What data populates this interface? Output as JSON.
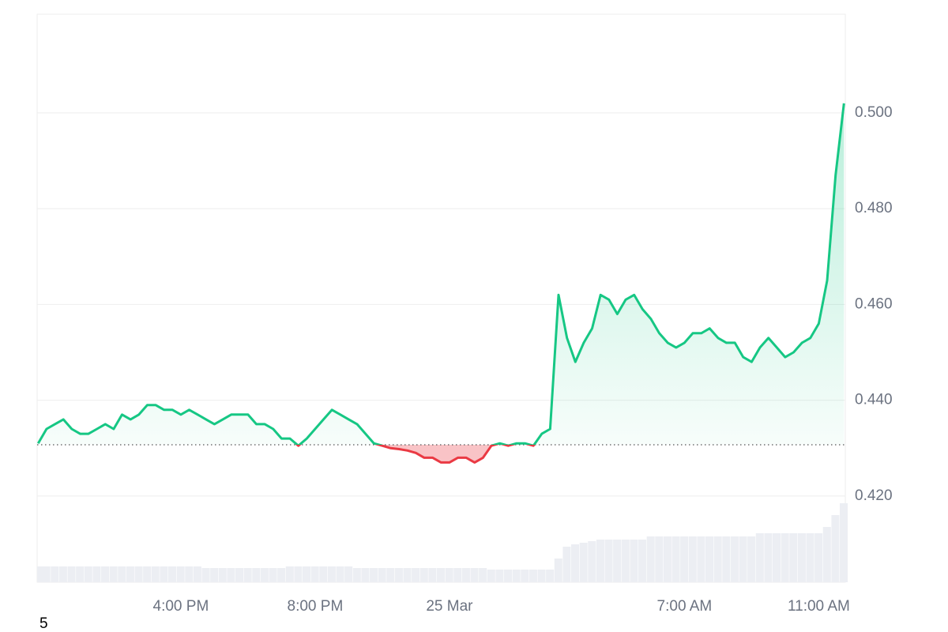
{
  "chart_data": {
    "type": "line",
    "x": [
      -12.25,
      -12,
      -11.75,
      -11.5,
      -11.25,
      -11,
      -10.75,
      -10.5,
      -10.25,
      -10,
      -9.75,
      -9.5,
      -9.25,
      -9,
      -8.75,
      -8.5,
      -8.25,
      -8,
      -7.75,
      -7.5,
      -7.25,
      -7,
      -6.75,
      -6.5,
      -6.25,
      -6,
      -5.75,
      -5.5,
      -5.25,
      -5,
      -4.75,
      -4.5,
      -4.25,
      -4,
      -3.75,
      -3.5,
      -3.25,
      -3,
      -2.75,
      -2.5,
      -2.25,
      -2,
      -1.75,
      -1.5,
      -1.25,
      -1,
      -0.75,
      -0.5,
      -0.25,
      0,
      0.25,
      0.5,
      0.75,
      1,
      1.25,
      1.5,
      1.75,
      2,
      2.25,
      2.5,
      2.75,
      3,
      3.25,
      3.5,
      3.75,
      4,
      4.25,
      4.5,
      4.75,
      5,
      5.25,
      5.5,
      5.75,
      6,
      6.25,
      6.5,
      6.75,
      7,
      7.25,
      7.5,
      7.75,
      8,
      8.25,
      8.5,
      8.75,
      9,
      9.25,
      9.5,
      9.75,
      10,
      10.25,
      10.5,
      10.75,
      11,
      11.25,
      11.5,
      11.75
    ],
    "values": [
      0.431,
      0.434,
      0.435,
      0.436,
      0.434,
      0.433,
      0.433,
      0.434,
      0.435,
      0.434,
      0.437,
      0.436,
      0.437,
      0.439,
      0.439,
      0.438,
      0.438,
      0.437,
      0.438,
      0.437,
      0.436,
      0.435,
      0.436,
      0.437,
      0.437,
      0.437,
      0.435,
      0.435,
      0.434,
      0.432,
      0.432,
      0.4305,
      0.432,
      0.434,
      0.436,
      0.438,
      0.437,
      0.436,
      0.435,
      0.433,
      0.431,
      0.4305,
      0.43,
      0.4298,
      0.4295,
      0.429,
      0.428,
      0.428,
      0.427,
      0.427,
      0.428,
      0.428,
      0.427,
      0.428,
      0.4305,
      0.431,
      0.4305,
      0.431,
      0.431,
      0.4305,
      0.433,
      0.434,
      0.462,
      0.453,
      0.448,
      0.452,
      0.455,
      0.462,
      0.461,
      0.458,
      0.461,
      0.462,
      0.459,
      0.457,
      0.454,
      0.452,
      0.451,
      0.452,
      0.454,
      0.454,
      0.455,
      0.453,
      0.452,
      0.452,
      0.449,
      0.448,
      0.451,
      0.453,
      0.451,
      0.449,
      0.45,
      0.452,
      0.453,
      0.456,
      0.465,
      0.487,
      0.502
    ],
    "volume": [
      20,
      20,
      20,
      20,
      20,
      20,
      20,
      20,
      20,
      20,
      20,
      20,
      20,
      20,
      20,
      20,
      20,
      20,
      20,
      20,
      18,
      18,
      18,
      18,
      18,
      18,
      18,
      18,
      18,
      18,
      20,
      20,
      20,
      20,
      20,
      20,
      20,
      20,
      18,
      18,
      18,
      18,
      18,
      18,
      18,
      18,
      18,
      18,
      18,
      18,
      18,
      18,
      18,
      18,
      16,
      16,
      16,
      16,
      16,
      16,
      16,
      16,
      30,
      45,
      48,
      50,
      52,
      54,
      54,
      54,
      54,
      54,
      54,
      58,
      58,
      58,
      58,
      58,
      58,
      58,
      58,
      58,
      58,
      58,
      58,
      58,
      62,
      62,
      62,
      62,
      62,
      62,
      62,
      62,
      70,
      85,
      100
    ],
    "baseline": 0.4307,
    "colors": {
      "up": "#16c784",
      "down": "#ea3943",
      "volume": "#eceef3"
    },
    "xlim": [
      -12.28,
      11.79
    ],
    "xticks": [
      {
        "value": -8,
        "label": "4:00 PM"
      },
      {
        "value": -4,
        "label": "8:00 PM"
      },
      {
        "value": 0,
        "label": "25 Mar"
      },
      {
        "value": 7,
        "label": "7:00 AM"
      },
      {
        "value": 11,
        "label": "11:00 AM"
      }
    ],
    "ylim": [
      0.402,
      0.5206
    ],
    "yticks": [
      {
        "value": 0.42,
        "label": "0.420"
      },
      {
        "value": 0.44,
        "label": "0.440"
      },
      {
        "value": 0.46,
        "label": "0.460"
      },
      {
        "value": 0.48,
        "label": "0.480"
      },
      {
        "value": 0.5,
        "label": "0.500"
      }
    ],
    "grid": true,
    "footnote": "5"
  }
}
